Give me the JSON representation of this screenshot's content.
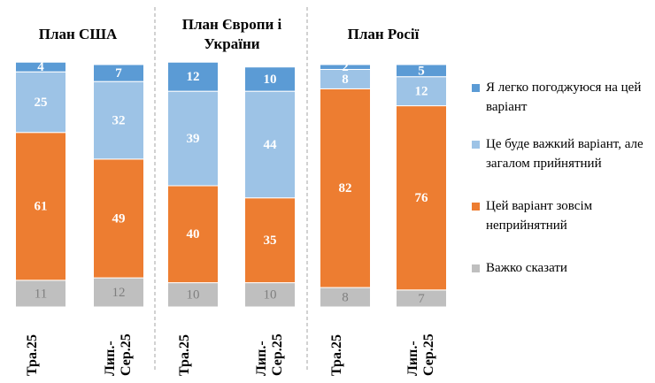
{
  "chart_data": {
    "type": "bar",
    "stacked": true,
    "series": [
      {
        "name": "Я легко погоджуюся на цей варіант",
        "color": "#5b9bd5"
      },
      {
        "name": "Це буде важкий варіант, але загалом прийнятний",
        "color": "#9dc3e6"
      },
      {
        "name": "Цей варіант зовсім неприйнятний",
        "color": "#ed7d31"
      },
      {
        "name": "Важко сказати",
        "color": "#bfbfbf"
      }
    ],
    "panels": [
      {
        "title": "План США",
        "categories": [
          "Тра.25",
          "Лип.-Сер.25"
        ],
        "values": [
          [
            4,
            7
          ],
          [
            25,
            32
          ],
          [
            61,
            49
          ],
          [
            11,
            12
          ]
        ]
      },
      {
        "title": "План Європи і України",
        "categories": [
          "Тра.25",
          "Лип.-Сер.25"
        ],
        "values": [
          [
            12,
            10
          ],
          [
            39,
            44
          ],
          [
            40,
            35
          ],
          [
            10,
            10
          ]
        ]
      },
      {
        "title": "План Росії",
        "categories": [
          "Тра.25",
          "Лип.-Сер.25"
        ],
        "values": [
          [
            2,
            5
          ],
          [
            8,
            12
          ],
          [
            82,
            76
          ],
          [
            8,
            7
          ]
        ]
      }
    ]
  }
}
